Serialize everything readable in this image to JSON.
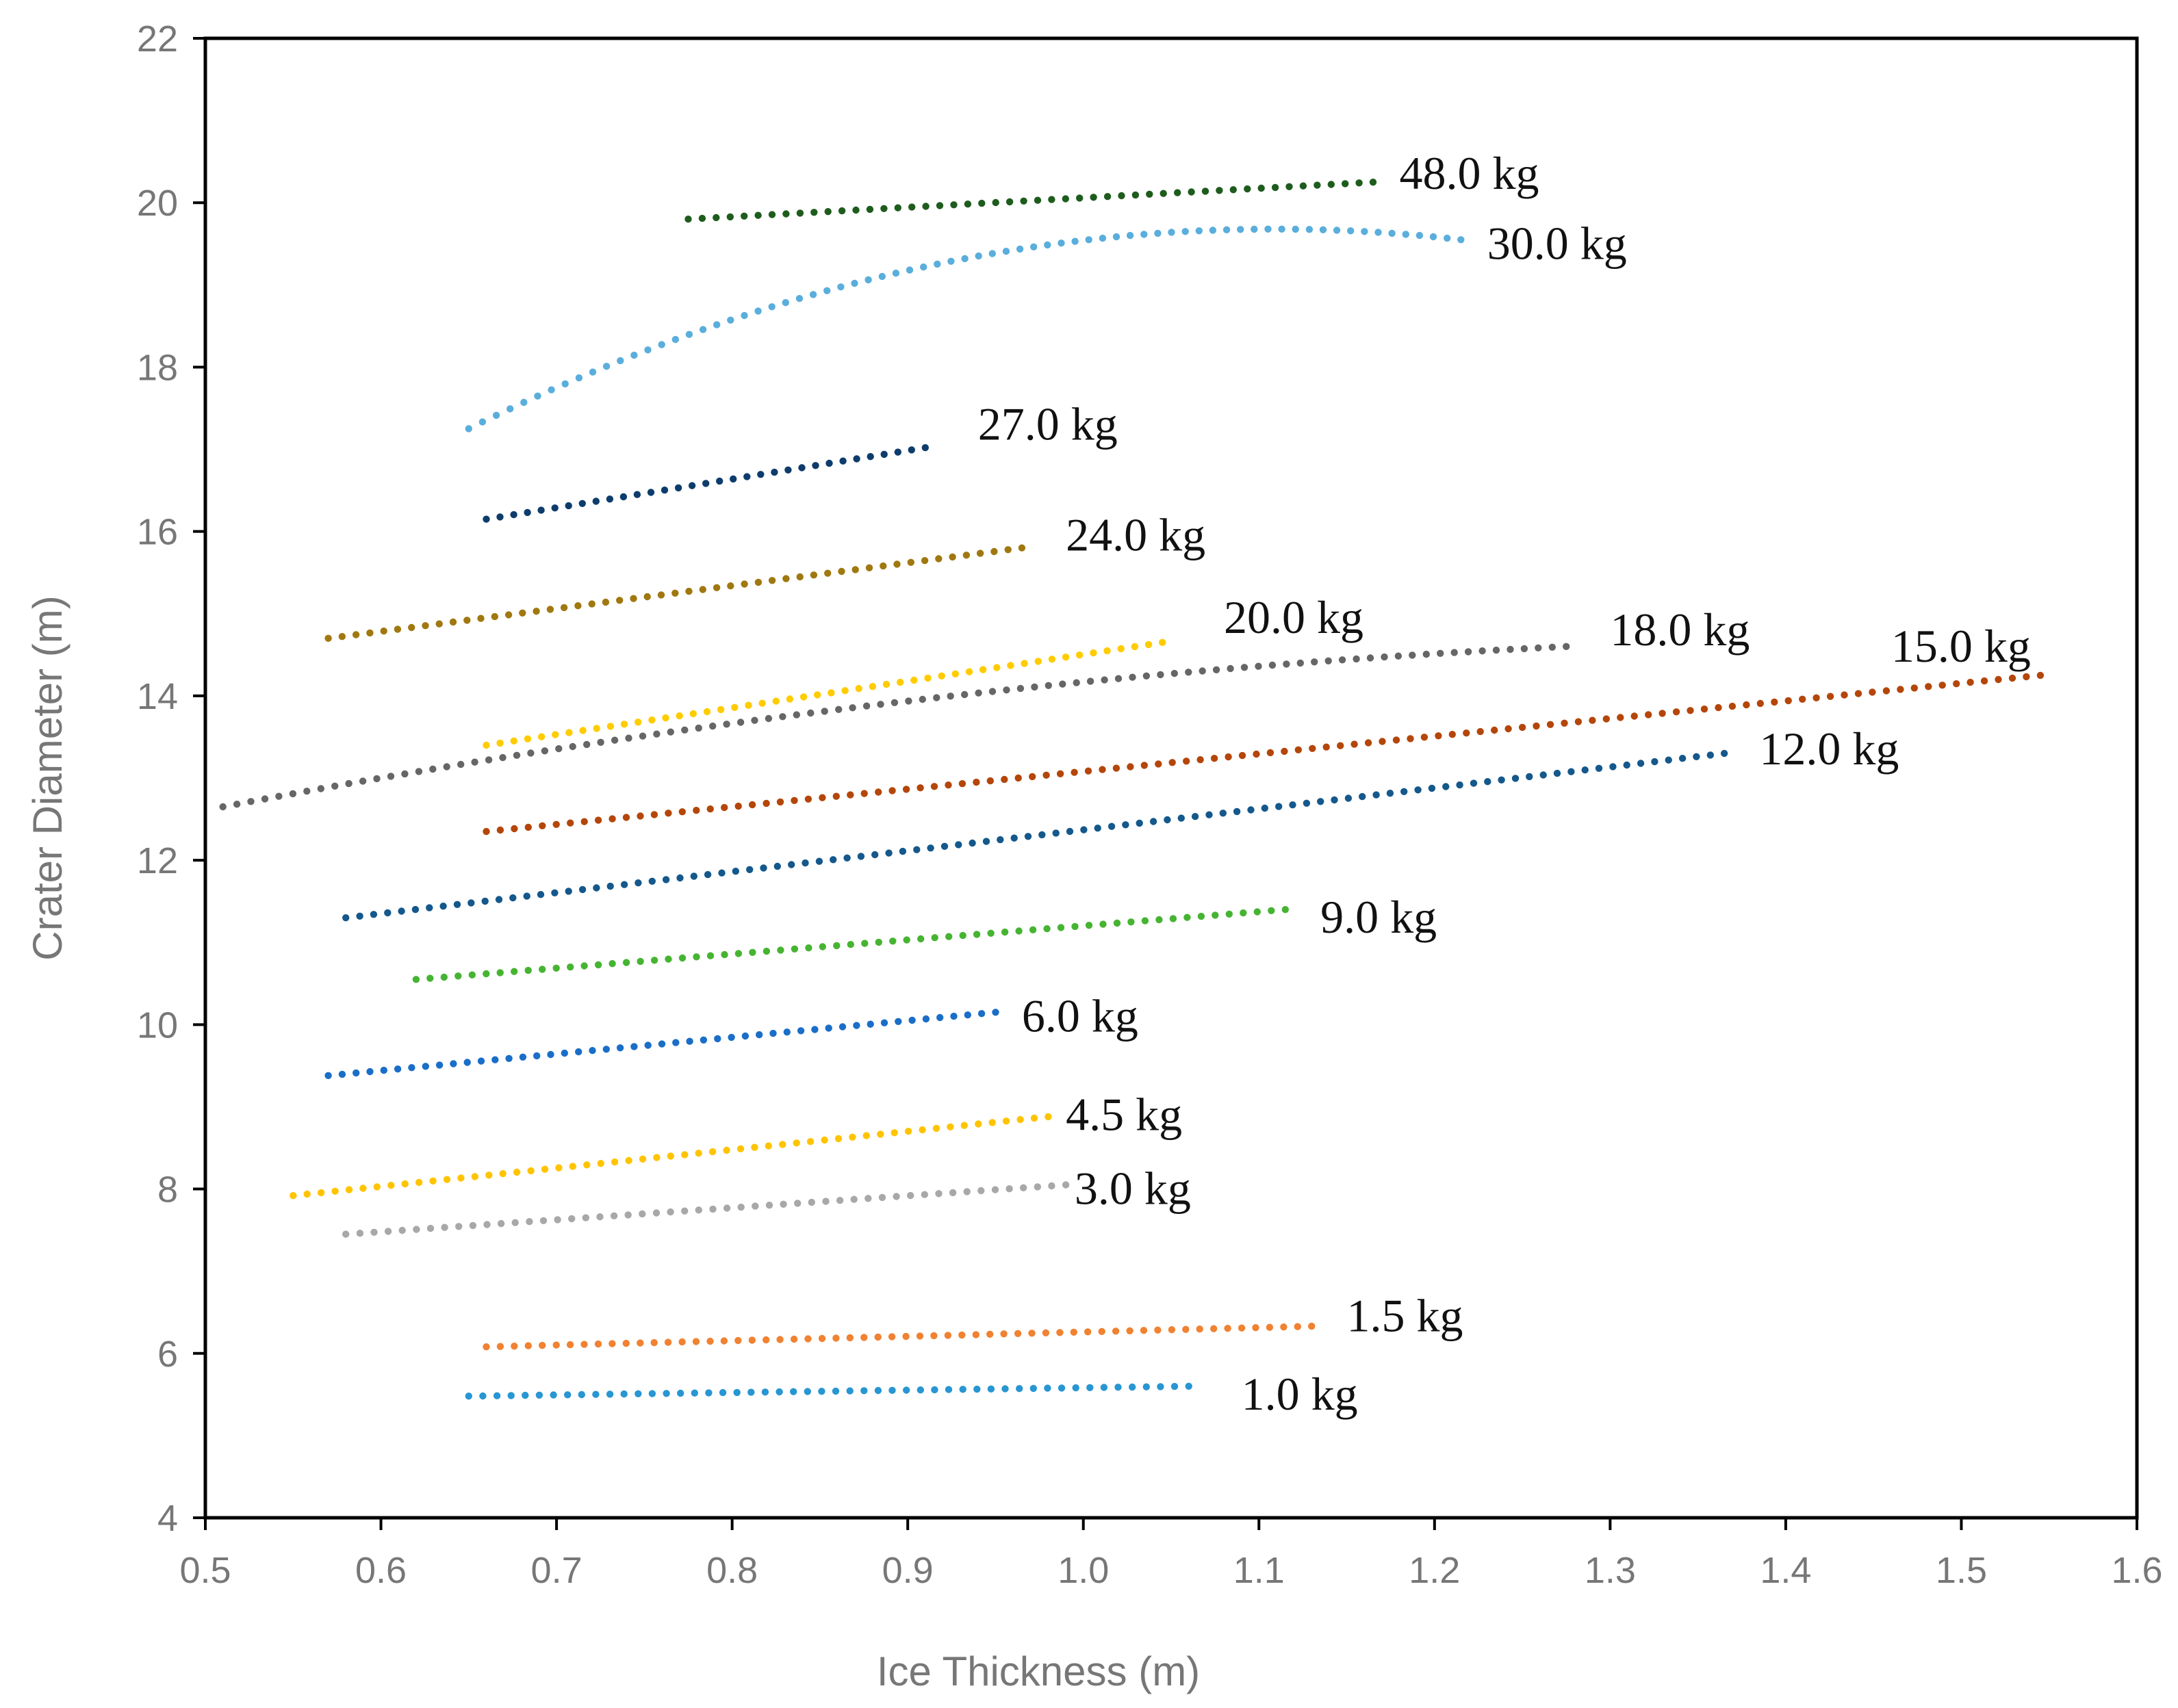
{
  "chart_data": {
    "type": "scatter",
    "title": "",
    "xlabel": "Ice Thickness (m)",
    "ylabel": "Crater Diameter (m)",
    "xlim": [
      0.5,
      1.6
    ],
    "ylim": [
      4,
      22
    ],
    "xticks": [
      "0.5",
      "0.6",
      "0.7",
      "0.8",
      "0.9",
      "1.0",
      "1.1",
      "1.2",
      "1.3",
      "1.4",
      "1.5",
      "1.6"
    ],
    "yticks": [
      "4",
      "6",
      "8",
      "10",
      "12",
      "14",
      "16",
      "18",
      "20",
      "22"
    ],
    "grid": false,
    "legend": "none",
    "series": [
      {
        "name": "48.0 kg",
        "color": "#1e5c1e",
        "start": [
          0.775,
          19.8
        ],
        "end": [
          1.165,
          20.25
        ],
        "curve": 0.0
      },
      {
        "name": "30.0 kg",
        "color": "#5aaedc",
        "start": [
          0.65,
          17.25
        ],
        "end": [
          1.215,
          19.55
        ],
        "curve": 0.4
      },
      {
        "name": "27.0 kg",
        "color": "#0d3c6c",
        "start": [
          0.66,
          16.15
        ],
        "end": [
          0.91,
          17.02
        ],
        "curve": 0.0
      },
      {
        "name": "24.0 kg",
        "color": "#a07810",
        "start": [
          0.57,
          14.7
        ],
        "end": [
          0.965,
          15.8
        ],
        "curve": 0.0
      },
      {
        "name": "20.0 kg",
        "color": "#ffcc00",
        "start": [
          0.66,
          13.4
        ],
        "end": [
          1.045,
          14.65
        ],
        "curve": 0.0
      },
      {
        "name": "18.0 kg",
        "color": "#666666",
        "start": [
          0.51,
          12.65
        ],
        "end": [
          1.275,
          14.6
        ],
        "curve": 0.15
      },
      {
        "name": "15.0 kg",
        "color": "#b4460a",
        "start": [
          0.66,
          12.35
        ],
        "end": [
          1.545,
          14.25
        ],
        "curve": 0.0
      },
      {
        "name": "12.0 kg",
        "color": "#14588c",
        "start": [
          0.58,
          11.3
        ],
        "end": [
          1.365,
          13.3
        ],
        "curve": 0.0
      },
      {
        "name": "9.0 kg",
        "color": "#46b432",
        "start": [
          0.62,
          10.55
        ],
        "end": [
          1.115,
          11.4
        ],
        "curve": 0.0
      },
      {
        "name": "6.0 kg",
        "color": "#1a6ec8",
        "start": [
          0.57,
          9.38
        ],
        "end": [
          0.95,
          10.15
        ],
        "curve": 0.0
      },
      {
        "name": "4.5 kg",
        "color": "#ffc400",
        "start": [
          0.55,
          7.92
        ],
        "end": [
          0.98,
          8.88
        ],
        "curve": 0.0
      },
      {
        "name": "3.0 kg",
        "color": "#a8a8a8",
        "start": [
          0.58,
          7.45
        ],
        "end": [
          0.99,
          8.05
        ],
        "curve": 0.0
      },
      {
        "name": "1.5 kg",
        "color": "#f08232",
        "start": [
          0.66,
          6.08
        ],
        "end": [
          1.13,
          6.33
        ],
        "curve": 0.0
      },
      {
        "name": "1.0 kg",
        "color": "#2896d2",
        "start": [
          0.65,
          5.48
        ],
        "end": [
          1.06,
          5.6
        ],
        "curve": 0.0
      }
    ],
    "annotations": [
      {
        "text": "48.0 kg",
        "x": 1.18,
        "y": 20.35
      },
      {
        "text": "30.0 kg",
        "x": 1.23,
        "y": 19.5
      },
      {
        "text": "27.0 kg",
        "x": 0.94,
        "y": 17.3
      },
      {
        "text": "24.0 kg",
        "x": 0.99,
        "y": 15.95
      },
      {
        "text": "20.0 kg",
        "x": 1.08,
        "y": 14.95
      },
      {
        "text": "18.0 kg",
        "x": 1.3,
        "y": 14.8
      },
      {
        "text": "15.0 kg",
        "x": 1.46,
        "y": 14.6
      },
      {
        "text": "12.0 kg",
        "x": 1.385,
        "y": 13.35
      },
      {
        "text": "9.0 kg",
        "x": 1.135,
        "y": 11.3
      },
      {
        "text": "6.0 kg",
        "x": 0.965,
        "y": 10.1
      },
      {
        "text": "4.5 kg",
        "x": 0.99,
        "y": 8.9
      },
      {
        "text": "3.0 kg",
        "x": 0.995,
        "y": 8.0
      },
      {
        "text": "1.5 kg",
        "x": 1.15,
        "y": 6.45
      },
      {
        "text": "1.0 kg",
        "x": 1.09,
        "y": 5.5
      }
    ]
  }
}
